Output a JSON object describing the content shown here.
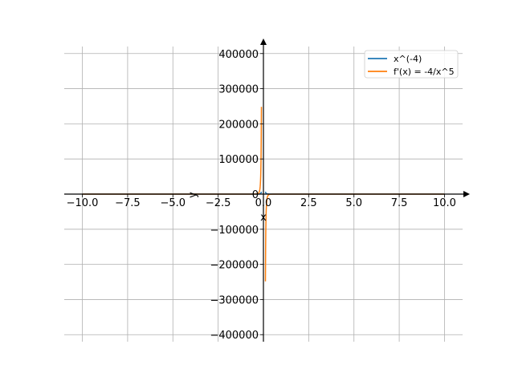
{
  "chart_data": {
    "type": "line",
    "xlabel": "x",
    "ylabel": "y",
    "xlim": [
      -11,
      11
    ],
    "ylim": [
      -420000,
      420000
    ],
    "grid": true,
    "legend_position": "top-right",
    "x_ticks": [
      -10.0,
      -7.5,
      -5.0,
      -2.5,
      0.0,
      2.5,
      5.0,
      7.5,
      10.0
    ],
    "x_tick_labels": [
      "−10.0",
      "−7.5",
      "−5.0",
      "−2.5",
      "0.0",
      "2.5",
      "5.0",
      "7.5",
      "10.0"
    ],
    "y_ticks": [
      -400000,
      -300000,
      -200000,
      -100000,
      0,
      100000,
      200000,
      300000,
      400000
    ],
    "y_tick_labels": [
      "−400000",
      "−300000",
      "−200000",
      "−100000",
      "0",
      "100000",
      "200000",
      "300000",
      "400000"
    ],
    "series": [
      {
        "name": "x^(-4)",
        "color": "#1f77b4",
        "function": "x^(-4)",
        "domain": [
          -10,
          10
        ]
      },
      {
        "name": "f'(x) = -4/x^5",
        "color": "#ff7f0e",
        "function": "-4/x^5",
        "domain": [
          -10,
          10
        ]
      }
    ]
  }
}
